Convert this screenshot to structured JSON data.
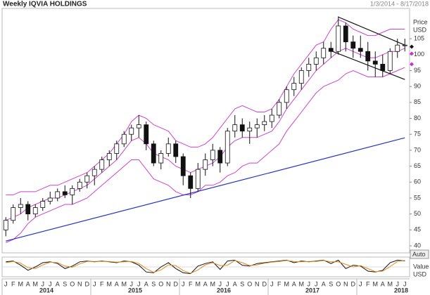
{
  "chart_data": {
    "type": "candlestick",
    "title": "Weekly IQVIA HOLDINGS",
    "date_range": "1/3/2014 - 8/17/2018",
    "price_label": "Price",
    "price_unit": "USD",
    "indicator_label": "Value",
    "indicator_unit": "USD",
    "auto_label": "Auto",
    "categories": [
      "J",
      "F",
      "M",
      "A",
      "M",
      "J",
      "J",
      "A",
      "S",
      "O",
      "N",
      "D",
      "J",
      "F",
      "M",
      "A",
      "M",
      "J",
      "J",
      "A",
      "S",
      "O",
      "N",
      "D",
      "J",
      "F",
      "M",
      "A",
      "M",
      "J",
      "J",
      "A",
      "S",
      "O",
      "N",
      "D",
      "J",
      "F",
      "M",
      "A",
      "M",
      "J",
      "J",
      "A",
      "S",
      "O",
      "N",
      "D",
      "J",
      "F",
      "M",
      "A",
      "M",
      "J",
      "J"
    ],
    "years": [
      "2014",
      "2015",
      "2016",
      "2017",
      "2018"
    ],
    "ohlc": [
      [
        45,
        49,
        43,
        48
      ],
      [
        48,
        53,
        47,
        52
      ],
      [
        52,
        55,
        50,
        53
      ],
      [
        53,
        54,
        48,
        50
      ],
      [
        50,
        53,
        49,
        52
      ],
      [
        52,
        55,
        51,
        54
      ],
      [
        54,
        57,
        53,
        55
      ],
      [
        55,
        58,
        54,
        57
      ],
      [
        57,
        59,
        55,
        56
      ],
      [
        56,
        59,
        53,
        58
      ],
      [
        58,
        61,
        57,
        60
      ],
      [
        60,
        63,
        58,
        62
      ],
      [
        62,
        65,
        59,
        64
      ],
      [
        64,
        68,
        63,
        67
      ],
      [
        67,
        70,
        65,
        69
      ],
      [
        69,
        73,
        67,
        72
      ],
      [
        72,
        76,
        71,
        75
      ],
      [
        75,
        78,
        73,
        77
      ],
      [
        77,
        81,
        74,
        78
      ],
      [
        78,
        79,
        70,
        72
      ],
      [
        72,
        73,
        65,
        66
      ],
      [
        66,
        70,
        64,
        69
      ],
      [
        69,
        74,
        68,
        72
      ],
      [
        72,
        73,
        66,
        68
      ],
      [
        68,
        69,
        59,
        62
      ],
      [
        62,
        63,
        55,
        58
      ],
      [
        58,
        66,
        57,
        64
      ],
      [
        64,
        69,
        62,
        67
      ],
      [
        67,
        72,
        65,
        70
      ],
      [
        70,
        71,
        63,
        66
      ],
      [
        66,
        77,
        65,
        76
      ],
      [
        76,
        81,
        74,
        78
      ],
      [
        78,
        80,
        74,
        76
      ],
      [
        76,
        79,
        72,
        77
      ],
      [
        77,
        80,
        74,
        78
      ],
      [
        78,
        81,
        76,
        79
      ],
      [
        79,
        83,
        77,
        81
      ],
      [
        81,
        86,
        80,
        85
      ],
      [
        85,
        90,
        83,
        89
      ],
      [
        89,
        93,
        87,
        91
      ],
      [
        91,
        96,
        89,
        95
      ],
      [
        95,
        99,
        93,
        97
      ],
      [
        97,
        101,
        95,
        99
      ],
      [
        99,
        104,
        97,
        102
      ],
      [
        102,
        104,
        99,
        101
      ],
      [
        101,
        112,
        100,
        109
      ],
      [
        109,
        110,
        101,
        104
      ],
      [
        104,
        106,
        99,
        102
      ],
      [
        102,
        106,
        99,
        101
      ],
      [
        101,
        104,
        95,
        98
      ],
      [
        98,
        101,
        93,
        97
      ],
      [
        97,
        100,
        93,
        95
      ],
      [
        95,
        102,
        94,
        101
      ],
      [
        101,
        105,
        99,
        103
      ],
      [
        103,
        105,
        101,
        103
      ]
    ],
    "up_color": "#ffffff",
    "down_color": "#111111",
    "bands": [
      {
        "color": "#cc44cc",
        "values": [
          56,
          56,
          57,
          57,
          57,
          58,
          59,
          59,
          60,
          61,
          62,
          63,
          65,
          67,
          69,
          72,
          75,
          79,
          81,
          80,
          78,
          77,
          76,
          73,
          72,
          71,
          71,
          72,
          74,
          77,
          80,
          83,
          84,
          83,
          82,
          82,
          83,
          86,
          90,
          94,
          97,
          100,
          103,
          104,
          108,
          111,
          110,
          108,
          107,
          106,
          106,
          107,
          108,
          108,
          108
        ]
      },
      {
        "color": "#cc44cc",
        "values": [
          48,
          49,
          50,
          52,
          53,
          54,
          55,
          55,
          56,
          57,
          58,
          59,
          61,
          63,
          65,
          67,
          70,
          73,
          74,
          72,
          69,
          68,
          67,
          65,
          64,
          63,
          64,
          65,
          66,
          68,
          71,
          73,
          74,
          74,
          74,
          75,
          76,
          79,
          83,
          86,
          89,
          92,
          95,
          97,
          99,
          101,
          102,
          101,
          100,
          99,
          99,
          100,
          101,
          101,
          102
        ]
      },
      {
        "color": "#cc44cc",
        "values": [
          41,
          42,
          44,
          47,
          49,
          50,
          51,
          52,
          53,
          53,
          54,
          55,
          57,
          59,
          61,
          63,
          65,
          67,
          67,
          64,
          61,
          60,
          59,
          57,
          56,
          56,
          57,
          59,
          59,
          60,
          62,
          63,
          65,
          66,
          66,
          68,
          70,
          72,
          76,
          79,
          82,
          85,
          88,
          90,
          91,
          92,
          94,
          95,
          94,
          93,
          93,
          93,
          94,
          95,
          96
        ]
      }
    ],
    "trendlines": [
      {
        "color": "#2233cc",
        "x": [
          0,
          54
        ],
        "values": [
          41.5,
          73.9
        ]
      },
      {
        "color": "#111111",
        "x": [
          45,
          54
        ],
        "values": [
          111.8,
          103
        ]
      },
      {
        "color": "#111111",
        "x": [
          44,
          54
        ],
        "values": [
          101.2,
          92.2
        ]
      }
    ],
    "markers": [
      {
        "value": 102.5,
        "color": "#111111"
      },
      {
        "value": 100.3,
        "color": "#cc33cc"
      },
      {
        "value": 97,
        "color": "#cc33cc"
      }
    ],
    "ylim": [
      37.8,
      114.5
    ],
    "yticks": [
      40,
      45,
      50,
      55,
      60,
      65,
      70,
      75,
      80,
      85,
      90,
      95,
      100,
      105
    ],
    "grid": false,
    "oscillator": {
      "ylim": [
        0,
        100
      ],
      "series": [
        {
          "color": "#111111",
          "values": [
            80,
            85,
            60,
            30,
            50,
            75,
            80,
            70,
            40,
            55,
            80,
            85,
            80,
            85,
            80,
            75,
            85,
            80,
            60,
            20,
            15,
            50,
            75,
            40,
            15,
            10,
            55,
            70,
            80,
            35,
            85,
            90,
            60,
            55,
            70,
            75,
            80,
            85,
            90,
            75,
            85,
            80,
            85,
            90,
            70,
            90,
            40,
            60,
            55,
            25,
            20,
            30,
            75,
            90,
            85
          ]
        },
        {
          "color": "#e08a1e",
          "values": [
            75,
            82,
            72,
            45,
            40,
            62,
            78,
            75,
            55,
            48,
            68,
            82,
            82,
            82,
            82,
            78,
            80,
            82,
            70,
            40,
            18,
            32,
            62,
            58,
            28,
            12,
            32,
            62,
            75,
            58,
            60,
            88,
            75,
            58,
            62,
            72,
            78,
            82,
            88,
            82,
            80,
            82,
            82,
            88,
            80,
            80,
            65,
            50,
            58,
            40,
            22,
            25,
            52,
            82,
            88
          ]
        }
      ]
    }
  }
}
